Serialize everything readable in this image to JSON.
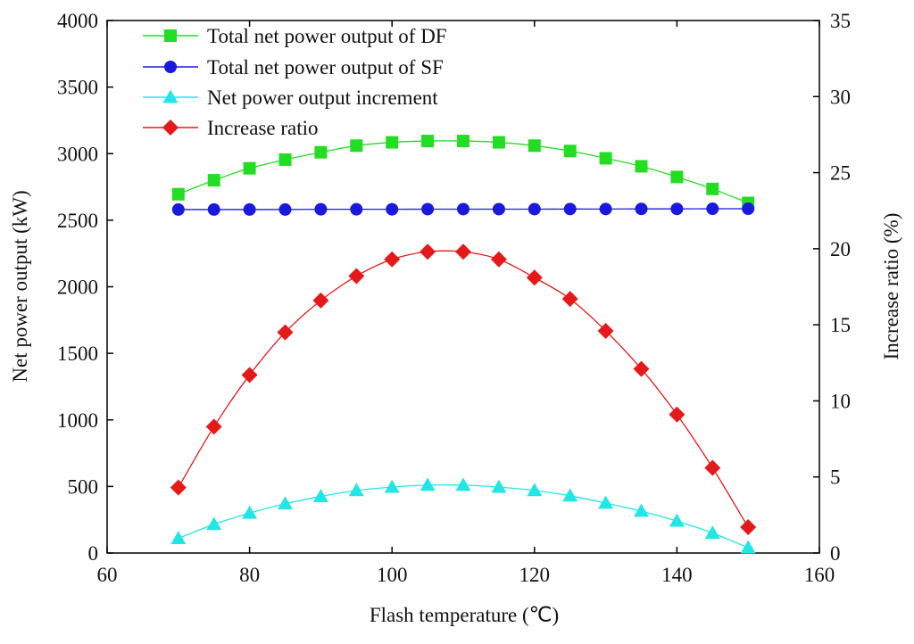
{
  "chart_data": {
    "type": "line",
    "xlabel": "Flash temperature (℃)",
    "ylabel": "Net power output (kW)",
    "y2label": "Increase ratio (%)",
    "xlim": [
      60,
      160
    ],
    "ylim": [
      0,
      4000
    ],
    "y2lim": [
      0,
      35
    ],
    "xticks": [
      "60",
      "80",
      "100",
      "120",
      "140",
      "160"
    ],
    "yticks": [
      "0",
      "500",
      "1000",
      "1500",
      "2000",
      "2500",
      "3000",
      "3500",
      "4000"
    ],
    "y2ticks": [
      "0",
      "5",
      "10",
      "15",
      "20",
      "25",
      "30",
      "35"
    ],
    "grid": false,
    "legend_position": "top-left",
    "x": [
      70,
      75,
      80,
      85,
      90,
      95,
      100,
      105,
      110,
      115,
      120,
      125,
      130,
      135,
      140,
      145,
      150
    ],
    "series": [
      {
        "name": "Total net power output of DF",
        "axis": "left",
        "marker": "square",
        "color": "#22dd22",
        "values": [
          2695,
          2800,
          2890,
          2955,
          3010,
          3060,
          3085,
          3095,
          3095,
          3085,
          3060,
          3020,
          2965,
          2905,
          2825,
          2735,
          2630
        ]
      },
      {
        "name": "Total net power output of SF",
        "axis": "left",
        "marker": "circle",
        "color": "#1a1adf",
        "values": [
          2580,
          2580,
          2580,
          2580,
          2582,
          2582,
          2582,
          2583,
          2583,
          2583,
          2583,
          2584,
          2584,
          2585,
          2585,
          2586,
          2586
        ]
      },
      {
        "name": "Net power output increment",
        "axis": "left",
        "marker": "triangle",
        "color": "#22e5e5",
        "values": [
          110,
          215,
          300,
          370,
          425,
          470,
          495,
          510,
          510,
          495,
          470,
          430,
          375,
          315,
          240,
          150,
          40
        ]
      },
      {
        "name": "Increase ratio",
        "axis": "right",
        "marker": "diamond",
        "color": "#e51919",
        "values": [
          4.3,
          8.3,
          11.7,
          14.5,
          16.6,
          18.2,
          19.3,
          19.8,
          19.8,
          19.3,
          18.1,
          16.7,
          14.6,
          12.1,
          9.1,
          5.6,
          1.7
        ]
      }
    ]
  }
}
